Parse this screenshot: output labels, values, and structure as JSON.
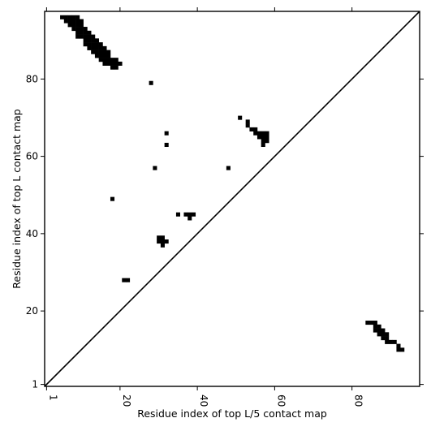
{
  "chart_data": {
    "type": "heatmap",
    "title": "",
    "xlabel": "Residue index of top L/5 contact map",
    "ylabel": "Residue index of top L contact map",
    "xlim": [
      1,
      98
    ],
    "ylim": [
      1,
      98
    ],
    "xticks": [
      {
        "value": 1,
        "label": "1"
      },
      {
        "value": 20,
        "label": "20"
      },
      {
        "value": 40,
        "label": "40"
      },
      {
        "value": 60,
        "label": "60"
      },
      {
        "value": 80,
        "label": "80"
      }
    ],
    "yticks": [
      {
        "value": 1,
        "label": "1"
      },
      {
        "value": 20,
        "label": "20"
      },
      {
        "value": 40,
        "label": "40"
      },
      {
        "value": 60,
        "label": "60"
      },
      {
        "value": 80,
        "label": "80"
      }
    ],
    "grid": false,
    "diagonal": true,
    "cell_color": "#000000",
    "upper_triangle_contacts": [
      [
        5,
        96
      ],
      [
        6,
        96
      ],
      [
        7,
        96
      ],
      [
        8,
        96
      ],
      [
        9,
        96
      ],
      [
        6,
        95
      ],
      [
        7,
        95
      ],
      [
        8,
        95
      ],
      [
        9,
        95
      ],
      [
        10,
        95
      ],
      [
        7,
        94
      ],
      [
        8,
        94
      ],
      [
        9,
        94
      ],
      [
        10,
        94
      ],
      [
        8,
        93
      ],
      [
        9,
        93
      ],
      [
        10,
        93
      ],
      [
        11,
        93
      ],
      [
        9,
        92
      ],
      [
        10,
        92
      ],
      [
        11,
        92
      ],
      [
        12,
        92
      ],
      [
        9,
        91
      ],
      [
        10,
        91
      ],
      [
        11,
        91
      ],
      [
        12,
        91
      ],
      [
        13,
        91
      ],
      [
        11,
        90
      ],
      [
        12,
        90
      ],
      [
        13,
        90
      ],
      [
        14,
        90
      ],
      [
        11,
        89
      ],
      [
        12,
        89
      ],
      [
        13,
        89
      ],
      [
        14,
        89
      ],
      [
        15,
        89
      ],
      [
        12,
        88
      ],
      [
        13,
        88
      ],
      [
        14,
        88
      ],
      [
        15,
        88
      ],
      [
        16,
        88
      ],
      [
        13,
        87
      ],
      [
        14,
        87
      ],
      [
        15,
        87
      ],
      [
        16,
        87
      ],
      [
        17,
        87
      ],
      [
        14,
        86
      ],
      [
        15,
        86
      ],
      [
        16,
        86
      ],
      [
        17,
        86
      ],
      [
        15,
        85
      ],
      [
        16,
        85
      ],
      [
        17,
        85
      ],
      [
        18,
        85
      ],
      [
        19,
        85
      ],
      [
        16,
        84
      ],
      [
        17,
        84
      ],
      [
        18,
        84
      ],
      [
        19,
        84
      ],
      [
        20,
        84
      ],
      [
        18,
        83
      ],
      [
        19,
        83
      ],
      [
        28,
        79
      ],
      [
        32,
        66
      ],
      [
        32,
        63
      ],
      [
        29,
        57
      ],
      [
        18,
        49
      ],
      [
        51,
        70
      ],
      [
        53,
        69
      ],
      [
        53,
        68
      ],
      [
        54,
        67
      ],
      [
        55,
        67
      ],
      [
        55,
        66
      ],
      [
        56,
        66
      ],
      [
        57,
        66
      ],
      [
        58,
        66
      ],
      [
        56,
        65
      ],
      [
        57,
        65
      ],
      [
        58,
        65
      ],
      [
        57,
        64
      ],
      [
        58,
        64
      ],
      [
        57,
        63
      ],
      [
        48,
        57
      ],
      [
        35,
        45
      ],
      [
        37,
        45
      ],
      [
        38,
        45
      ],
      [
        39,
        45
      ],
      [
        38,
        44
      ],
      [
        30,
        39
      ],
      [
        31,
        39
      ],
      [
        30,
        38
      ],
      [
        31,
        38
      ],
      [
        32,
        38
      ],
      [
        31,
        37
      ],
      [
        21,
        28
      ],
      [
        22,
        28
      ]
    ],
    "lower_triangle_contacts": [
      [
        84,
        17
      ],
      [
        85,
        17
      ],
      [
        86,
        17
      ],
      [
        86,
        16
      ],
      [
        87,
        16
      ],
      [
        86,
        15
      ],
      [
        87,
        15
      ],
      [
        88,
        15
      ],
      [
        87,
        14
      ],
      [
        88,
        14
      ],
      [
        89,
        14
      ],
      [
        88,
        13
      ],
      [
        89,
        13
      ],
      [
        89,
        12
      ],
      [
        90,
        12
      ],
      [
        91,
        12
      ],
      [
        92,
        11
      ],
      [
        92,
        10
      ],
      [
        93,
        10
      ]
    ]
  }
}
